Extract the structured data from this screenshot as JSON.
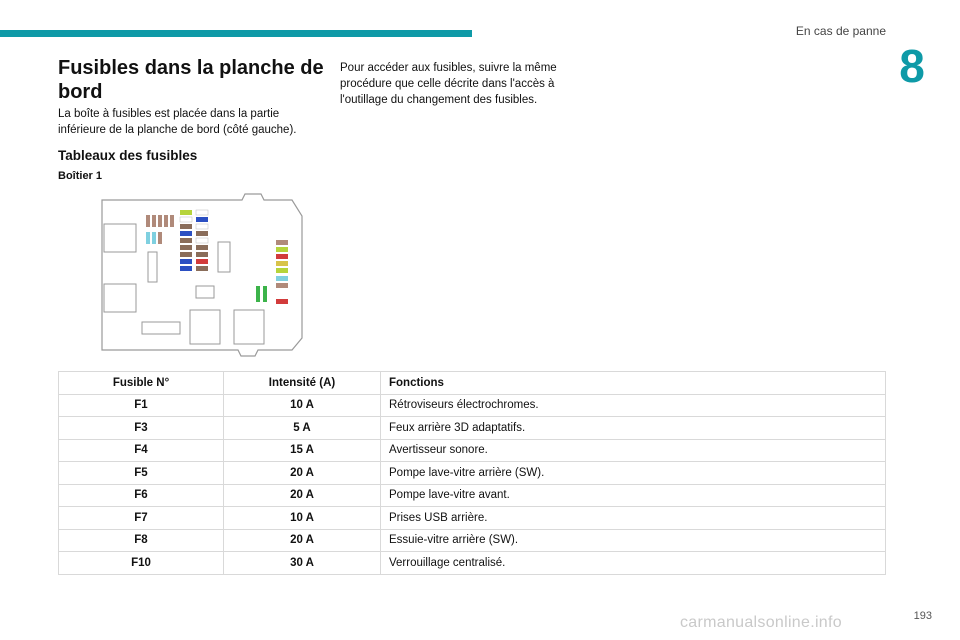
{
  "header": {
    "section_title": "En cas de panne",
    "chapter_number": "8",
    "accent_color": "#0e9aa7"
  },
  "heading": "Fusibles dans la planche de bord",
  "intro": "La boîte à fusibles est placée dans la partie inférieure de la planche de bord (côté gauche).",
  "right_paragraph": "Pour accéder aux fusibles, suivre la même procédure que celle décrite dans l'accès à l'outillage du changement des fusibles.",
  "subheading": "Tableaux des fusibles",
  "box_label": "Boîtier 1",
  "table": {
    "headers": [
      "Fusible N°",
      "Intensité (A)",
      "Fonctions"
    ],
    "rows": [
      {
        "fuse": "F1",
        "amps": "10 A",
        "function": "Rétroviseurs électrochromes."
      },
      {
        "fuse": "F3",
        "amps": "5 A",
        "function": "Feux arrière 3D adaptatifs."
      },
      {
        "fuse": "F4",
        "amps": "15 A",
        "function": "Avertisseur sonore."
      },
      {
        "fuse": "F5",
        "amps": "20 A",
        "function": "Pompe lave-vitre arrière (SW)."
      },
      {
        "fuse": "F6",
        "amps": "20 A",
        "function": "Pompe lave-vitre avant."
      },
      {
        "fuse": "F7",
        "amps": "10 A",
        "function": "Prises USB arrière."
      },
      {
        "fuse": "F8",
        "amps": "20 A",
        "function": "Essuie-vitre arrière (SW)."
      },
      {
        "fuse": "F10",
        "amps": "30 A",
        "function": "Verrouillage centralisé."
      }
    ]
  },
  "page_number": "193",
  "watermark": "carmanualsonline.info"
}
